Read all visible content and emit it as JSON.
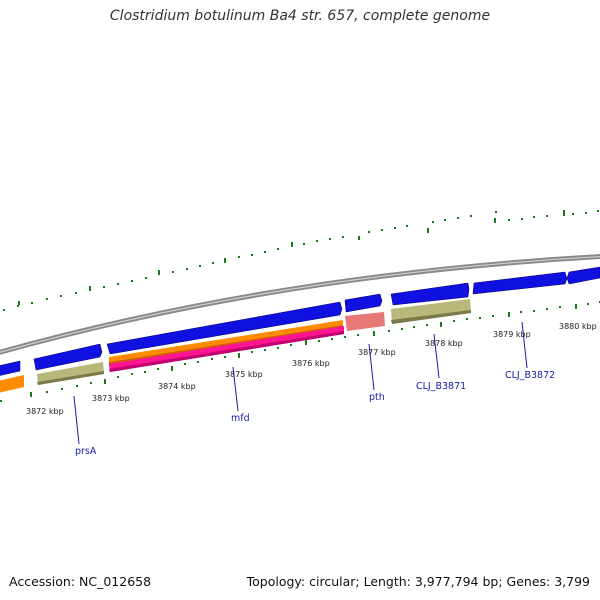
{
  "title": "Clostridium botulinum Ba4 str. 657, complete genome",
  "footer": {
    "accession": "Accession: NC_012658",
    "summary": "Topology: circular; Length: 3,977,794 bp; Genes: 3,799"
  },
  "colors": {
    "backbone": "#8a8a8a",
    "cds_forward": "#1010e0",
    "cds_reverse_khaki": "#b8b87a",
    "orange_track": "#ff8c00",
    "pink_track": "#ff1493",
    "salmon_track": "#e87878",
    "tick_green": "#1a7a1a",
    "label_blue": "#1a1aa8"
  },
  "kbp_ticks": [
    "3872 kbp",
    "3873 kbp",
    "3874 kbp",
    "3875 kbp",
    "3876 kbp",
    "3877 kbp",
    "3878 kbp",
    "3879 kbp",
    "3880 kbp"
  ],
  "gene_labels": [
    "prsA",
    "mfd",
    "pth",
    "CLJ_B3871",
    "CLJ_B3872"
  ]
}
